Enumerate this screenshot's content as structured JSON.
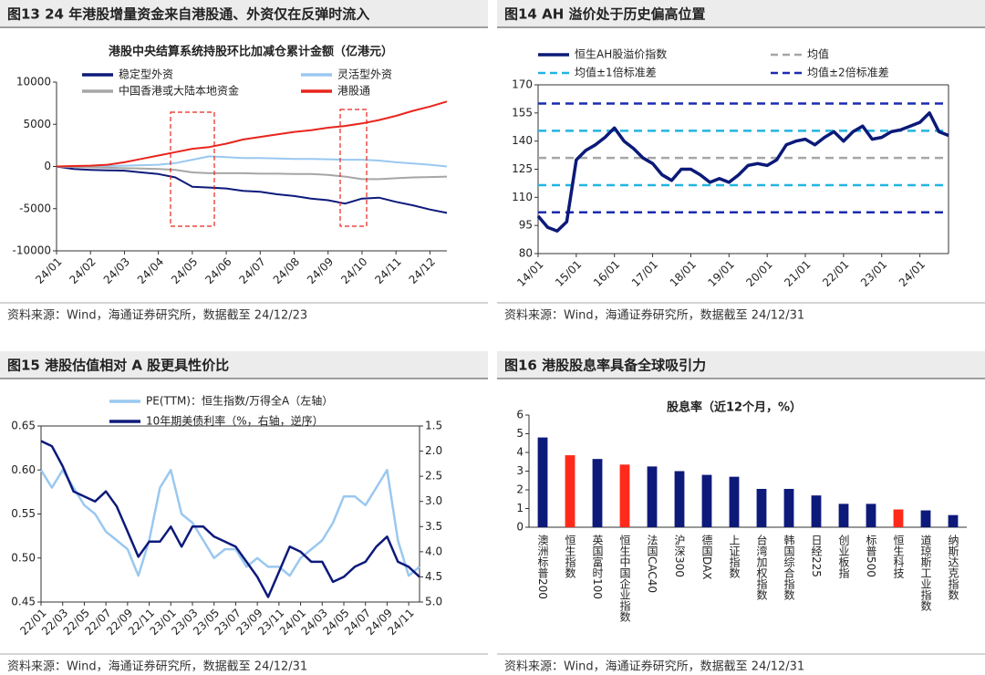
{
  "chart_data": [
    {
      "type": "line",
      "title": "图13 24 年港股增量资金来自港股通、外资仅在反弹时流入",
      "subtitle": "港股中央结算系统持股环比加减仓累计金额（亿港元）",
      "source": "资料来源：Wind，海通证券研究所，数据截至 24/12/23",
      "categories": [
        "24/01",
        null,
        "24/02",
        null,
        "24/03",
        null,
        "24/04",
        null,
        "24/05",
        null,
        "24/06",
        null,
        "24/07",
        null,
        "24/08",
        null,
        "24/09",
        null,
        "24/10",
        null,
        "24/11",
        null,
        "24/12",
        null
      ],
      "ylim": [
        -10000,
        10000
      ],
      "yticks": [
        -10000,
        -5000,
        0,
        5000,
        10000
      ],
      "series": [
        {
          "name": "稳定型外资",
          "color": "#0d1a7a",
          "values": [
            0,
            -300,
            -400,
            -450,
            -500,
            -700,
            -900,
            -1300,
            -2400,
            -2500,
            -2600,
            -2900,
            -3000,
            -3300,
            -3500,
            -3800,
            -4000,
            -4400,
            -3800,
            -3700,
            -4200,
            -4600,
            -5100,
            -5500
          ]
        },
        {
          "name": "灵活型外资",
          "color": "#9ac8f0",
          "values": [
            0,
            -50,
            0,
            50,
            100,
            150,
            200,
            400,
            800,
            1200,
            1100,
            1000,
            1000,
            950,
            900,
            900,
            850,
            800,
            800,
            700,
            500,
            350,
            200,
            0
          ]
        },
        {
          "name": "中国香港或大陆本地资金",
          "color": "#a6a6a6",
          "values": [
            0,
            -50,
            -100,
            -150,
            -200,
            -250,
            -300,
            -400,
            -700,
            -800,
            -800,
            -800,
            -850,
            -850,
            -900,
            -900,
            -1000,
            -1200,
            -1500,
            -1500,
            -1400,
            -1300,
            -1250,
            -1200
          ]
        },
        {
          "name": "港股通",
          "color": "#e8251c",
          "values": [
            0,
            50,
            100,
            200,
            500,
            900,
            1300,
            1700,
            2100,
            2300,
            2700,
            3200,
            3500,
            3800,
            4100,
            4300,
            4600,
            4800,
            5100,
            5500,
            6000,
            6600,
            7100,
            7700
          ]
        }
      ]
    },
    {
      "type": "line",
      "title": "图14 AH 溢价处于历史偏高位置",
      "source": "资料来源：Wind，海通证券研究所，数据截至 24/12/31",
      "categories": [
        "14/01",
        null,
        null,
        null,
        "15/01",
        null,
        null,
        null,
        "16/01",
        null,
        null,
        null,
        "17/01",
        null,
        null,
        null,
        "18/01",
        null,
        null,
        null,
        "19/01",
        null,
        null,
        null,
        "20/01",
        null,
        null,
        null,
        "21/01",
        null,
        null,
        null,
        "22/01",
        null,
        null,
        null,
        "23/01",
        null,
        null,
        null,
        "24/01",
        null,
        null,
        null
      ],
      "ylim": [
        80,
        170
      ],
      "yticks": [
        80,
        95,
        110,
        125,
        140,
        155,
        170
      ],
      "series": [
        {
          "name": "恒生AH股溢价指数",
          "color": "#0b1a78",
          "values": [
            100,
            94,
            92,
            97,
            130,
            135,
            138,
            142,
            147,
            140,
            136,
            131,
            128,
            122,
            119,
            125,
            125,
            122,
            118,
            120,
            118,
            122,
            127,
            128,
            127,
            130,
            138,
            140,
            141,
            138,
            142,
            145,
            140,
            145,
            148,
            141,
            142,
            145,
            146,
            148,
            150,
            155,
            145,
            143
          ]
        }
      ],
      "reference_lines": [
        {
          "name": "均值",
          "color": "#a6a6a6",
          "values": [
            131
          ]
        },
        {
          "name": "均值±1倍标准差",
          "color": "#22b5e0",
          "values": [
            145.5,
            116.5
          ]
        },
        {
          "name": "均值±2倍标准差",
          "color": "#1a2bb0",
          "values": [
            160,
            102
          ]
        }
      ]
    },
    {
      "type": "line",
      "title": "图15 港股估值相对 A 股更具性价比",
      "source": "资料来源：Wind，海通证券研究所，数据截至 24/12/31",
      "categories": [
        "22/01",
        null,
        "22/03",
        null,
        "22/05",
        null,
        "22/07",
        null,
        "22/09",
        null,
        "22/11",
        null,
        "23/01",
        null,
        "23/03",
        null,
        "23/05",
        null,
        "23/07",
        null,
        "23/09",
        null,
        "23/11",
        null,
        "24/01",
        null,
        "24/03",
        null,
        "24/05",
        null,
        "24/07",
        null,
        "24/09",
        null,
        "24/11",
        null
      ],
      "ylim": [
        0.45,
        0.65
      ],
      "yticks": [
        0.45,
        {
          "value": 0.5,
          "label": "0.50"
        },
        0.55,
        {
          "value": 0.6,
          "label": "0.60"
        },
        0.65
      ],
      "y2lim": [
        5,
        1.5
      ],
      "y2ticks": [
        1.5,
        {
          "value": 2,
          "label": "2.0"
        },
        2.5,
        {
          "value": 3,
          "label": "3.0"
        },
        3.5,
        {
          "value": 4,
          "label": "4.0"
        },
        4.5,
        {
          "value": 5,
          "label": "5.0"
        }
      ],
      "series": [
        {
          "name": "PE(TTM)：恒生指数/万得全A（左轴）",
          "color": "#9ac8f0",
          "values": [
            0.6,
            0.58,
            0.6,
            0.58,
            0.56,
            0.55,
            0.53,
            0.52,
            0.51,
            0.48,
            0.52,
            0.58,
            0.6,
            0.55,
            0.54,
            0.52,
            0.5,
            0.51,
            0.51,
            0.49,
            0.5,
            0.49,
            0.49,
            0.48,
            0.5,
            0.51,
            0.52,
            0.54,
            0.57,
            0.57,
            0.56,
            0.58,
            0.6,
            0.52,
            0.48,
            0.49
          ]
        },
        {
          "name": "10年期美债利率（%，右轴，逆序）",
          "color": "#0d1a7a",
          "axis": "y2",
          "values": [
            1.8,
            1.9,
            2.3,
            2.8,
            2.9,
            3.0,
            2.8,
            3.1,
            3.6,
            4.1,
            3.8,
            3.8,
            3.5,
            3.9,
            3.5,
            3.5,
            3.7,
            3.8,
            3.9,
            4.2,
            4.5,
            4.9,
            4.4,
            3.9,
            4.0,
            4.2,
            4.2,
            4.6,
            4.5,
            4.3,
            4.2,
            3.9,
            3.7,
            4.2,
            4.3,
            4.5
          ]
        }
      ]
    },
    {
      "type": "bar",
      "title": "图16 港股股息率具备全球吸引力",
      "subtitle": "股息率（近12个月，%）",
      "source": "资料来源：Wind，海通证券研究所，数据截至 24/12/31",
      "categories": [
        "澳洲标普200",
        "恒生指数",
        "英国富时100",
        "恒生中国企业指数",
        "法国CAC40",
        "沪深300",
        "德国DAX",
        "上证指数",
        "台湾加权指数",
        "韩国综合指数",
        "日经225",
        "创业板指",
        "标普500",
        "恒生科技",
        "道琼斯工业指数",
        "纳斯达克指数"
      ],
      "values": [
        4.8,
        3.85,
        3.65,
        3.35,
        3.25,
        3.0,
        2.8,
        2.7,
        2.05,
        2.05,
        1.7,
        1.25,
        1.25,
        0.95,
        0.9,
        0.65
      ],
      "colors": [
        "#0d1a7a",
        "#ff2a1a",
        "#0d1a7a",
        "#ff2a1a",
        "#0d1a7a",
        "#0d1a7a",
        "#0d1a7a",
        "#0d1a7a",
        "#0d1a7a",
        "#0d1a7a",
        "#0d1a7a",
        "#0d1a7a",
        "#0d1a7a",
        "#ff2a1a",
        "#0d1a7a",
        "#0d1a7a"
      ],
      "ylim": [
        0,
        6
      ],
      "yticks": [
        0,
        1,
        2,
        3,
        4,
        5,
        6
      ]
    }
  ]
}
